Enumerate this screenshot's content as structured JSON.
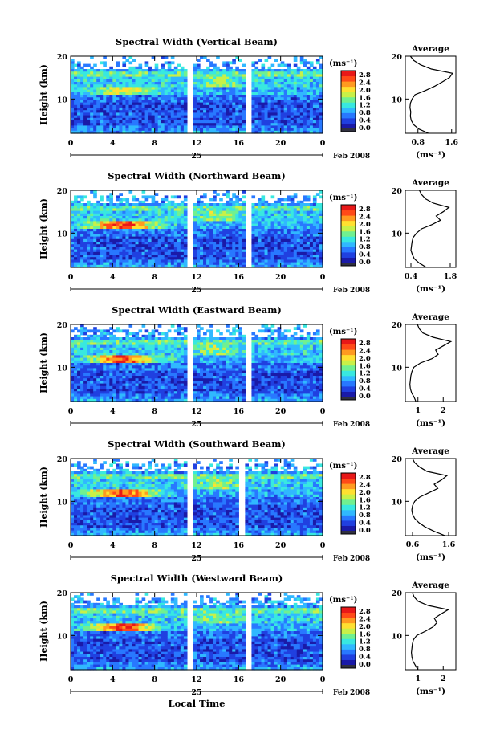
{
  "figure": {
    "bottom_axis_label": "Local Time",
    "unit_label": "(ms⁻¹)",
    "date_label": "Feb 2008",
    "day_label": "25",
    "colorbar_ticks": [
      "2.8",
      "2.4",
      "2.0",
      "1.6",
      "1.2",
      "0.8",
      "0.4",
      "0.0"
    ],
    "colorscale": [
      "#1a1aa8",
      "#2040e0",
      "#2878ff",
      "#30b8ff",
      "#38e8e0",
      "#70f090",
      "#c8f048",
      "#ffe030",
      "#ff9a20",
      "#ff4a18",
      "#e81818"
    ]
  },
  "chart_data": [
    {
      "type": "heatmap",
      "title": "Spectral Width (Vertical Beam)",
      "ylabel": "Height (km)",
      "xlabel": "Local Time",
      "x_ticks": [
        "0",
        "4",
        "8",
        "12",
        "16",
        "20",
        "0"
      ],
      "y_ticks": [
        "20",
        "10"
      ],
      "ylim": [
        2,
        20
      ],
      "xlim": [
        0,
        24
      ],
      "colorbar_range": [
        0.0,
        2.8
      ],
      "data_gaps_hours": [
        [
          11.1,
          11.6
        ],
        [
          16.7,
          17.1
        ]
      ],
      "profile": {
        "title": "Average",
        "xlabel": "(ms⁻¹)",
        "x_ticks": [
          "0.8",
          "1.6"
        ],
        "xlim": [
          0.5,
          1.7
        ],
        "heights": [
          2,
          3,
          4,
          5,
          6,
          7,
          8,
          9,
          10,
          11,
          12,
          13,
          14,
          15,
          16,
          17,
          18,
          19,
          20
        ],
        "values": [
          1.05,
          0.82,
          0.7,
          0.64,
          0.62,
          0.63,
          0.61,
          0.62,
          0.66,
          0.73,
          0.98,
          1.2,
          1.38,
          1.55,
          1.62,
          1.12,
          0.86,
          0.7,
          0.62
        ]
      }
    },
    {
      "type": "heatmap",
      "title": "Spectral Width (Northward Beam)",
      "ylabel": "Height (km)",
      "xlabel": "Local Time",
      "x_ticks": [
        "0",
        "4",
        "8",
        "12",
        "16",
        "20",
        "0"
      ],
      "y_ticks": [
        "20",
        "10"
      ],
      "ylim": [
        2,
        20
      ],
      "xlim": [
        0,
        24
      ],
      "colorbar_range": [
        0.0,
        2.8
      ],
      "data_gaps_hours": [
        [
          11.1,
          11.6
        ],
        [
          16.7,
          17.1
        ]
      ],
      "profile": {
        "title": "Average",
        "xlabel": "(ms⁻¹)",
        "x_ticks": [
          "0.4",
          "1.8"
        ],
        "xlim": [
          0.2,
          2.0
        ],
        "heights": [
          2,
          3,
          4,
          5,
          6,
          7,
          8,
          9,
          10,
          11,
          12,
          13,
          14,
          15,
          16,
          17,
          18,
          19,
          20
        ],
        "values": [
          0.95,
          0.7,
          0.52,
          0.45,
          0.4,
          0.42,
          0.44,
          0.48,
          0.6,
          0.78,
          1.15,
          1.45,
          1.3,
          1.55,
          1.75,
          1.2,
          0.92,
          0.78,
          0.7
        ]
      }
    },
    {
      "type": "heatmap",
      "title": "Spectral Width (Eastward Beam)",
      "ylabel": "Height (km)",
      "xlabel": "Local Time",
      "x_ticks": [
        "0",
        "4",
        "8",
        "12",
        "16",
        "20",
        "0"
      ],
      "y_ticks": [
        "20",
        "10"
      ],
      "ylim": [
        2,
        20
      ],
      "xlim": [
        0,
        24
      ],
      "colorbar_range": [
        0.0,
        2.8
      ],
      "data_gaps_hours": [
        [
          11.1,
          11.6
        ],
        [
          16.7,
          17.1
        ]
      ],
      "profile": {
        "title": "Average",
        "xlabel": "(ms⁻¹)",
        "x_ticks": [
          "1",
          "2"
        ],
        "xlim": [
          0.5,
          2.5
        ],
        "heights": [
          2,
          3,
          4,
          5,
          6,
          7,
          8,
          9,
          10,
          11,
          12,
          13,
          14,
          15,
          16,
          17,
          18,
          19,
          20
        ],
        "values": [
          0.92,
          0.85,
          0.75,
          0.7,
          0.68,
          0.7,
          0.72,
          0.76,
          0.84,
          1.1,
          1.55,
          1.8,
          1.7,
          2.0,
          2.3,
          1.6,
          1.2,
          1.05,
          0.98
        ]
      }
    },
    {
      "type": "heatmap",
      "title": "Spectral Width (Southward Beam)",
      "ylabel": "Height (km)",
      "xlabel": "Local Time",
      "x_ticks": [
        "0",
        "4",
        "8",
        "12",
        "16",
        "20",
        "0"
      ],
      "y_ticks": [
        "20",
        "10"
      ],
      "ylim": [
        2,
        20
      ],
      "xlim": [
        0,
        24
      ],
      "colorbar_range": [
        0.0,
        2.8
      ],
      "data_gaps_hours": [
        [
          11.1,
          11.6
        ],
        [
          15.9,
          16.6
        ]
      ],
      "profile": {
        "title": "Average",
        "xlabel": "(ms⁻¹)",
        "x_ticks": [
          "0.6",
          "1.6"
        ],
        "xlim": [
          0.4,
          1.8
        ],
        "heights": [
          2,
          3,
          4,
          5,
          6,
          7,
          8,
          9,
          10,
          11,
          12,
          13,
          14,
          15,
          16,
          17,
          18,
          19,
          20
        ],
        "values": [
          1.5,
          1.2,
          0.95,
          0.78,
          0.66,
          0.6,
          0.58,
          0.6,
          0.66,
          0.8,
          1.05,
          1.3,
          1.2,
          1.4,
          1.55,
          1.0,
          0.8,
          0.66,
          0.6
        ]
      }
    },
    {
      "type": "heatmap",
      "title": "Spectral Width (Westward Beam)",
      "ylabel": "Height (km)",
      "xlabel": "Local Time",
      "x_ticks": [
        "0",
        "4",
        "8",
        "12",
        "16",
        "20",
        "0"
      ],
      "y_ticks": [
        "20",
        "10"
      ],
      "ylim": [
        2,
        20
      ],
      "xlim": [
        0,
        24
      ],
      "colorbar_range": [
        0.0,
        2.8
      ],
      "data_gaps_hours": [
        [
          11.1,
          11.6
        ],
        [
          16.7,
          17.1
        ]
      ],
      "profile": {
        "title": "Average",
        "xlabel": "(ms⁻¹)",
        "x_ticks": [
          "1",
          "2"
        ],
        "xlim": [
          0.5,
          2.5
        ],
        "heights": [
          2,
          3,
          4,
          5,
          6,
          7,
          8,
          9,
          10,
          11,
          12,
          13,
          14,
          15,
          16,
          17,
          18,
          19,
          20
        ],
        "values": [
          1.0,
          0.9,
          0.8,
          0.76,
          0.74,
          0.76,
          0.78,
          0.82,
          0.95,
          1.3,
          1.6,
          1.75,
          1.65,
          1.9,
          2.2,
          1.4,
          1.0,
          0.85,
          0.78
        ]
      }
    }
  ]
}
